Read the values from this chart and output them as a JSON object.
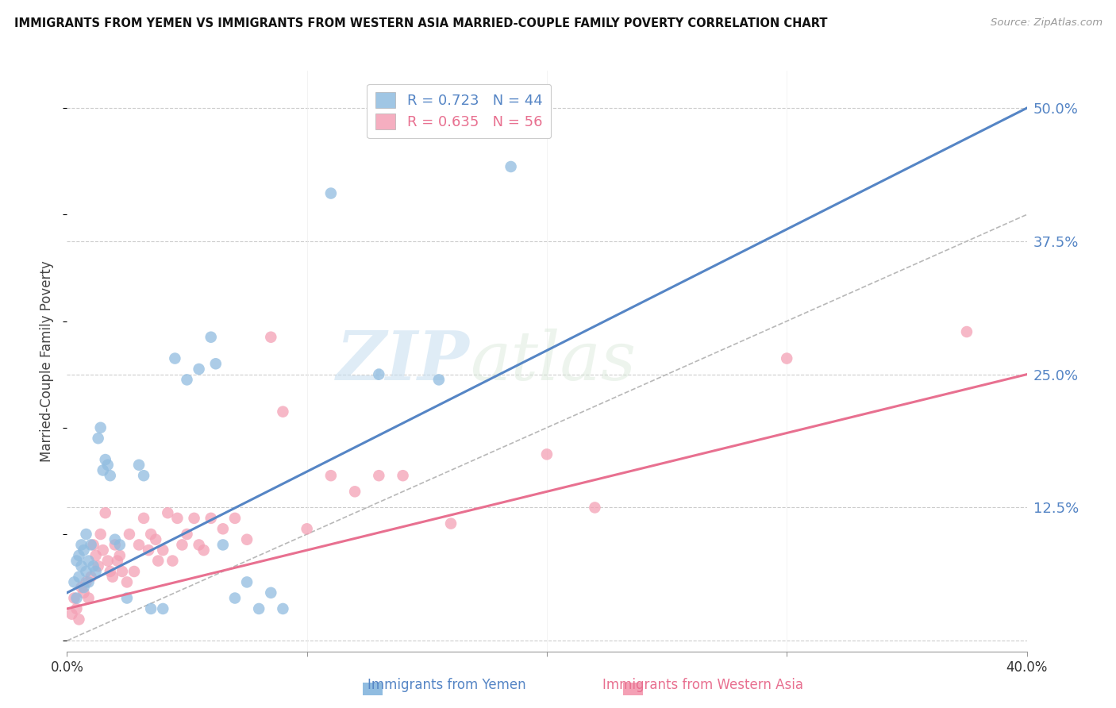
{
  "title": "IMMIGRANTS FROM YEMEN VS IMMIGRANTS FROM WESTERN ASIA MARRIED-COUPLE FAMILY POVERTY CORRELATION CHART",
  "source": "Source: ZipAtlas.com",
  "ylabel": "Married-Couple Family Poverty",
  "yticks": [
    0.0,
    0.125,
    0.25,
    0.375,
    0.5
  ],
  "ytick_labels": [
    "",
    "12.5%",
    "25.0%",
    "37.5%",
    "50.0%"
  ],
  "xmin": 0.0,
  "xmax": 0.4,
  "ymin": -0.01,
  "ymax": 0.535,
  "legend_label1": "Immigrants from Yemen",
  "legend_label2": "Immigrants from Western Asia",
  "watermark_zip": "ZIP",
  "watermark_atlas": "atlas",
  "blue_color": "#90bce0",
  "pink_color": "#f4a0b5",
  "blue_line_color": "#5585c5",
  "pink_line_color": "#e87090",
  "ref_line_color": "#b8b8b8",
  "legend_r1": "R = 0.723",
  "legend_n1": "N = 44",
  "legend_r2": "R = 0.635",
  "legend_n2": "N = 56",
  "blue_line_x": [
    0.0,
    0.4
  ],
  "blue_line_y": [
    0.045,
    0.5
  ],
  "pink_line_x": [
    0.0,
    0.4
  ],
  "pink_line_y": [
    0.03,
    0.25
  ],
  "ref_line_x": [
    0.0,
    0.52
  ],
  "ref_line_y": [
    0.0,
    0.52
  ],
  "xticks": [
    0.0,
    0.1,
    0.2,
    0.3,
    0.4
  ],
  "xtick_labels": [
    "0.0%",
    "",
    "",
    "",
    "40.0%"
  ],
  "yemen_scatter": [
    [
      0.003,
      0.055
    ],
    [
      0.004,
      0.04
    ],
    [
      0.004,
      0.075
    ],
    [
      0.005,
      0.08
    ],
    [
      0.005,
      0.06
    ],
    [
      0.006,
      0.09
    ],
    [
      0.006,
      0.07
    ],
    [
      0.007,
      0.085
    ],
    [
      0.007,
      0.05
    ],
    [
      0.008,
      0.065
    ],
    [
      0.008,
      0.1
    ],
    [
      0.009,
      0.075
    ],
    [
      0.009,
      0.055
    ],
    [
      0.01,
      0.09
    ],
    [
      0.011,
      0.07
    ],
    [
      0.012,
      0.065
    ],
    [
      0.013,
      0.19
    ],
    [
      0.014,
      0.2
    ],
    [
      0.015,
      0.16
    ],
    [
      0.016,
      0.17
    ],
    [
      0.017,
      0.165
    ],
    [
      0.018,
      0.155
    ],
    [
      0.02,
      0.095
    ],
    [
      0.022,
      0.09
    ],
    [
      0.025,
      0.04
    ],
    [
      0.03,
      0.165
    ],
    [
      0.032,
      0.155
    ],
    [
      0.035,
      0.03
    ],
    [
      0.04,
      0.03
    ],
    [
      0.045,
      0.265
    ],
    [
      0.05,
      0.245
    ],
    [
      0.055,
      0.255
    ],
    [
      0.06,
      0.285
    ],
    [
      0.062,
      0.26
    ],
    [
      0.065,
      0.09
    ],
    [
      0.07,
      0.04
    ],
    [
      0.075,
      0.055
    ],
    [
      0.08,
      0.03
    ],
    [
      0.085,
      0.045
    ],
    [
      0.09,
      0.03
    ],
    [
      0.11,
      0.42
    ],
    [
      0.13,
      0.25
    ],
    [
      0.155,
      0.245
    ],
    [
      0.185,
      0.445
    ]
  ],
  "western_scatter": [
    [
      0.002,
      0.025
    ],
    [
      0.003,
      0.04
    ],
    [
      0.004,
      0.03
    ],
    [
      0.005,
      0.02
    ],
    [
      0.006,
      0.05
    ],
    [
      0.007,
      0.045
    ],
    [
      0.008,
      0.055
    ],
    [
      0.009,
      0.04
    ],
    [
      0.01,
      0.06
    ],
    [
      0.011,
      0.09
    ],
    [
      0.012,
      0.08
    ],
    [
      0.013,
      0.07
    ],
    [
      0.014,
      0.1
    ],
    [
      0.015,
      0.085
    ],
    [
      0.016,
      0.12
    ],
    [
      0.017,
      0.075
    ],
    [
      0.018,
      0.065
    ],
    [
      0.019,
      0.06
    ],
    [
      0.02,
      0.09
    ],
    [
      0.021,
      0.075
    ],
    [
      0.022,
      0.08
    ],
    [
      0.023,
      0.065
    ],
    [
      0.025,
      0.055
    ],
    [
      0.026,
      0.1
    ],
    [
      0.028,
      0.065
    ],
    [
      0.03,
      0.09
    ],
    [
      0.032,
      0.115
    ],
    [
      0.034,
      0.085
    ],
    [
      0.035,
      0.1
    ],
    [
      0.037,
      0.095
    ],
    [
      0.038,
      0.075
    ],
    [
      0.04,
      0.085
    ],
    [
      0.042,
      0.12
    ],
    [
      0.044,
      0.075
    ],
    [
      0.046,
      0.115
    ],
    [
      0.048,
      0.09
    ],
    [
      0.05,
      0.1
    ],
    [
      0.053,
      0.115
    ],
    [
      0.055,
      0.09
    ],
    [
      0.057,
      0.085
    ],
    [
      0.06,
      0.115
    ],
    [
      0.065,
      0.105
    ],
    [
      0.07,
      0.115
    ],
    [
      0.075,
      0.095
    ],
    [
      0.085,
      0.285
    ],
    [
      0.09,
      0.215
    ],
    [
      0.1,
      0.105
    ],
    [
      0.11,
      0.155
    ],
    [
      0.12,
      0.14
    ],
    [
      0.13,
      0.155
    ],
    [
      0.14,
      0.155
    ],
    [
      0.16,
      0.11
    ],
    [
      0.2,
      0.175
    ],
    [
      0.22,
      0.125
    ],
    [
      0.3,
      0.265
    ],
    [
      0.375,
      0.29
    ]
  ]
}
